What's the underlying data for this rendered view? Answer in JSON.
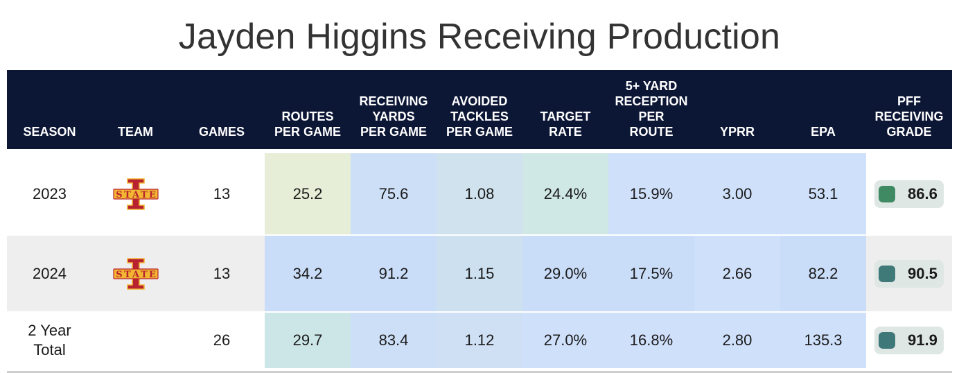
{
  "title": "Jayden Higgins Receiving Production",
  "chart_data": {
    "type": "table",
    "columns": [
      "SEASON",
      "TEAM",
      "GAMES",
      "ROUTES\nPER GAME",
      "RECEIVING\nYARDS\nPER GAME",
      "AVOIDED\nTACKLES\nPER GAME",
      "TARGET\nRATE",
      "5+ YARD\nRECEPTION\nPER\nROUTE",
      "YPRR",
      "EPA",
      "PFF\nRECEIVING\nGRADE"
    ],
    "rows": [
      {
        "season": "2023",
        "team": "iowa-state-logo",
        "games": "13",
        "routes_per_game": "25.2",
        "rec_yards_per_game": "75.6",
        "avoided_tackles_per_game": "1.08",
        "target_rate": "24.4%",
        "five_plus_reception_per_route": "15.9%",
        "yprr": "3.00",
        "epa": "53.1",
        "pff_grade": "86.6"
      },
      {
        "season": "2024",
        "team": "iowa-state-logo",
        "games": "13",
        "routes_per_game": "34.2",
        "rec_yards_per_game": "91.2",
        "avoided_tackles_per_game": "1.15",
        "target_rate": "29.0%",
        "five_plus_reception_per_route": "17.5%",
        "yprr": "2.66",
        "epa": "82.2",
        "pff_grade": "90.5"
      },
      {
        "season": "2 Year\nTotal",
        "team": "",
        "games": "26",
        "routes_per_game": "29.7",
        "rec_yards_per_game": "83.4",
        "avoided_tackles_per_game": "1.12",
        "target_rate": "27.0%",
        "five_plus_reception_per_route": "16.8%",
        "yprr": "2.80",
        "epa": "135.3",
        "pff_grade": "91.9"
      }
    ],
    "cell_colors": [
      [
        "#ffffff",
        "#ffffff",
        "#ffffff",
        "#e6eed8",
        "#cddff7",
        "#cfe2ee",
        "#cfe8e6",
        "#cfe0fb",
        "#cfe0fb",
        "#cfe0fb",
        "#ffffff"
      ],
      [
        "#eeeeee",
        "#eeeeee",
        "#eeeeee",
        "#c9dcf8",
        "#c9dcf8",
        "#cde0f0",
        "#c9dcf8",
        "#c9dcf8",
        "#cfe0fb",
        "#c9dcf8",
        "#eeeeee"
      ],
      [
        "#ffffff",
        "#ffffff",
        "#ffffff",
        "#cce6e8",
        "#cddff7",
        "#cfe0f5",
        "#cfe0fb",
        "#cfe0fb",
        "#cfe0fb",
        "#cfe0fb",
        "#ffffff"
      ]
    ],
    "grade_colors": [
      "#3f8a63",
      "#3f7a78",
      "#3f7879"
    ],
    "header_bg": "#0c1635"
  }
}
